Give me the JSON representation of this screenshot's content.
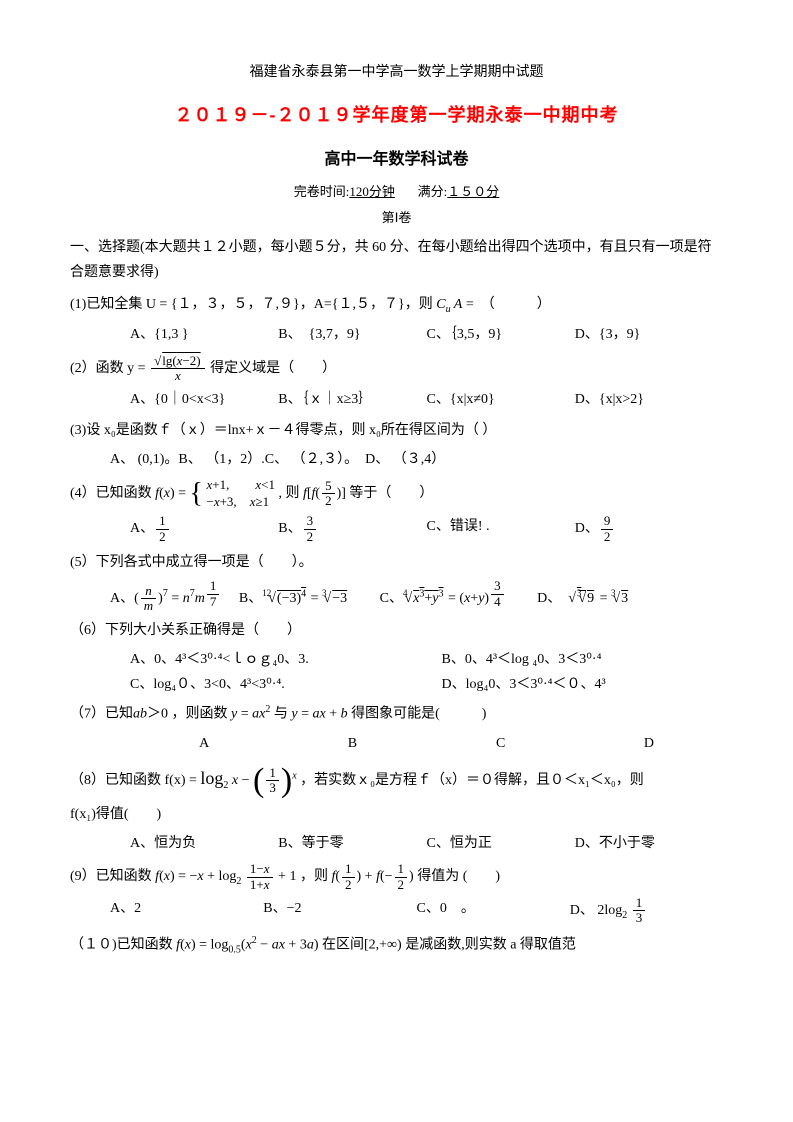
{
  "header": "福建省永泰县第一中学高一数学上学期期中试题",
  "title": "２０１９－-２０１９学年度第一学期永泰一中期中考",
  "subtitle": "高中一年数学科试卷",
  "meta": {
    "time_label": "完卷时间:",
    "time": "120分钟",
    "score_label": "满分:",
    "score": "１５０分"
  },
  "part": "第Ⅰ卷",
  "intro1": "一、选择题(本大题共１２小题，每小题５分，共 60 分、在每小题给出得四个选项中，有且只有一项是符合题意要求得)",
  "q1": {
    "stem": "(1)已知全集 U = {１，３，５，７,９}，A={１,５，７}，则",
    "opA": "{1,3 }",
    "opB": "{3,7，9}",
    "opC": "｛3,5，9}",
    "opD": "{3，9}"
  },
  "q2": {
    "stem_pre": "(2）函数 y = ",
    "stem_suf": " 得定义域是（　　）",
    "opA": "{0｜0<x<3}",
    "opB": "｛ｘ｜x≥3｝",
    "opC": "{x|x≠0}",
    "opD": "{x|x>2}"
  },
  "q3": {
    "stem": "(3)设 x₀是函数ｆ（ｘ）＝lnx+ｘ－４得零点，则 x₀所在得区间为（   ）",
    "ops": "A、 (0,1)。B、 （1，2）.C、 （２,３）。　D、 （３,4）"
  },
  "q4": {
    "stem_pre": "(4）已知函数",
    "opA_num": "1",
    "opB_num": "3",
    "opC": "C、错误! .",
    "opD_num": "9"
  },
  "q5": {
    "stem": "(5）下列各式中成立得一项是（　　）。"
  },
  "q6": {
    "stem": "（6）下列大小关系正确得是（　　）",
    "opA": "A、0、4³＜3⁰·⁴<ｌｏｇ₄0、3.",
    "opB": "B、0、4³＜log ₄0、3＜3⁰·⁴",
    "opC": "C、log₄０、3<0、4³<3⁰·⁴.",
    "opD": "D、log₄0、3＜3⁰·⁴＜０、4³"
  },
  "q7": {
    "stem": "（7）已知ab＞0 ，则函数 y = ax² 与 y = ax + b 得图象可能是(　　　)",
    "A": "A",
    "B": "B",
    "C": "C",
    "D": "D"
  },
  "q8": {
    "stem_pre": "（8）已知函数 f(x) = ",
    "stem_suf": "，若实数ｘ₀是方程ｆ（x）＝０得解，且０＜x₁＜x₀，则",
    "line2": "f(x₁)得值(　　)",
    "opA": "A、恒为负",
    "opB": "B、等于零",
    "opC": "C、恒为正",
    "opD": "D、不小于零"
  },
  "q9": {
    "stem_pre": "(9）已知函数",
    "stem_suf": "得值为 (　　)",
    "opA": "A、2",
    "opB": "B、−2",
    "opC": "C、0　。",
    "opD_pre": "D、"
  },
  "q10": {
    "stem_pre": "（１０)已知函数",
    "stem_suf": "在区间[2,+∞) 是减函数,则实数 a 得取值范"
  }
}
